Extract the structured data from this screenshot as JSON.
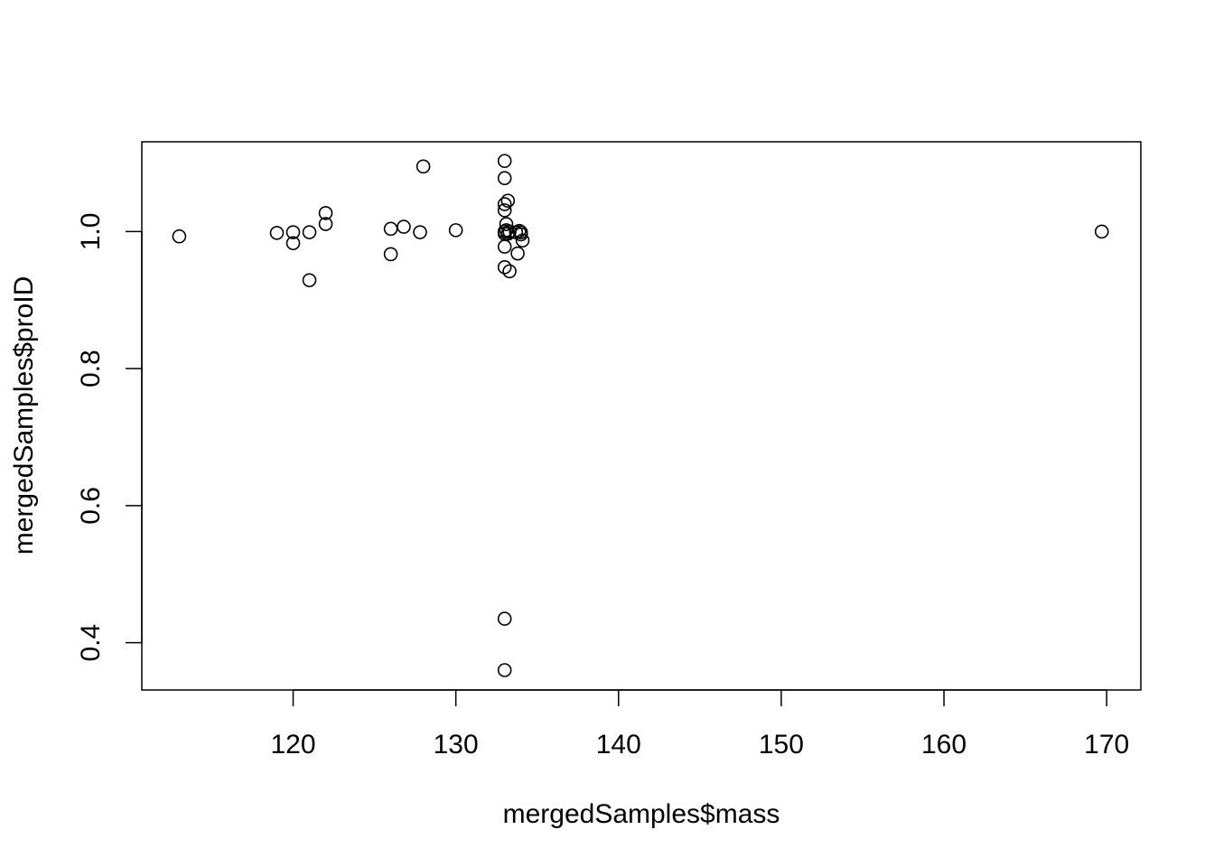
{
  "chart_data": {
    "type": "scatter",
    "title": "",
    "xlabel": "mergedSamples$mass",
    "ylabel": "mergedSamples$proID",
    "xlim": [
      110.7,
      172.1
    ],
    "ylim": [
      0.331,
      1.131
    ],
    "xticks": [
      120,
      130,
      140,
      150,
      160,
      170
    ],
    "xtick_labels": [
      "120",
      "130",
      "140",
      "150",
      "160",
      "170"
    ],
    "yticks": [
      0.4,
      0.6,
      0.8,
      1.0
    ],
    "ytick_labels": [
      "0.4",
      "0.6",
      "0.8",
      "1.0"
    ],
    "grid": false,
    "legend": "none",
    "marker": "open-circle",
    "points": [
      {
        "x": 113.0,
        "y": 0.993
      },
      {
        "x": 119.0,
        "y": 0.998
      },
      {
        "x": 120.0,
        "y": 0.999
      },
      {
        "x": 120.0,
        "y": 0.983
      },
      {
        "x": 121.0,
        "y": 0.999
      },
      {
        "x": 121.0,
        "y": 0.929
      },
      {
        "x": 122.0,
        "y": 1.027
      },
      {
        "x": 122.0,
        "y": 1.011
      },
      {
        "x": 126.0,
        "y": 1.004
      },
      {
        "x": 126.0,
        "y": 0.967
      },
      {
        "x": 126.8,
        "y": 1.007
      },
      {
        "x": 127.8,
        "y": 0.999
      },
      {
        "x": 128.0,
        "y": 1.095
      },
      {
        "x": 130.0,
        "y": 1.002
      },
      {
        "x": 133.0,
        "y": 1.103
      },
      {
        "x": 133.0,
        "y": 1.078
      },
      {
        "x": 133.0,
        "y": 1.04
      },
      {
        "x": 133.0,
        "y": 1.031
      },
      {
        "x": 133.2,
        "y": 1.045
      },
      {
        "x": 133.1,
        "y": 1.011
      },
      {
        "x": 133.0,
        "y": 1.0
      },
      {
        "x": 133.0,
        "y": 0.997
      },
      {
        "x": 133.1,
        "y": 1.002
      },
      {
        "x": 133.2,
        "y": 0.997
      },
      {
        "x": 133.3,
        "y": 1.0
      },
      {
        "x": 133.0,
        "y": 0.978
      },
      {
        "x": 133.0,
        "y": 0.948
      },
      {
        "x": 133.3,
        "y": 0.942
      },
      {
        "x": 133.7,
        "y": 0.999
      },
      {
        "x": 133.9,
        "y": 1.001
      },
      {
        "x": 134.0,
        "y": 0.999
      },
      {
        "x": 133.8,
        "y": 0.968
      },
      {
        "x": 134.1,
        "y": 0.987
      },
      {
        "x": 134.0,
        "y": 0.996
      },
      {
        "x": 133.0,
        "y": 0.435
      },
      {
        "x": 133.0,
        "y": 0.36
      },
      {
        "x": 169.7,
        "y": 1.0
      }
    ]
  }
}
